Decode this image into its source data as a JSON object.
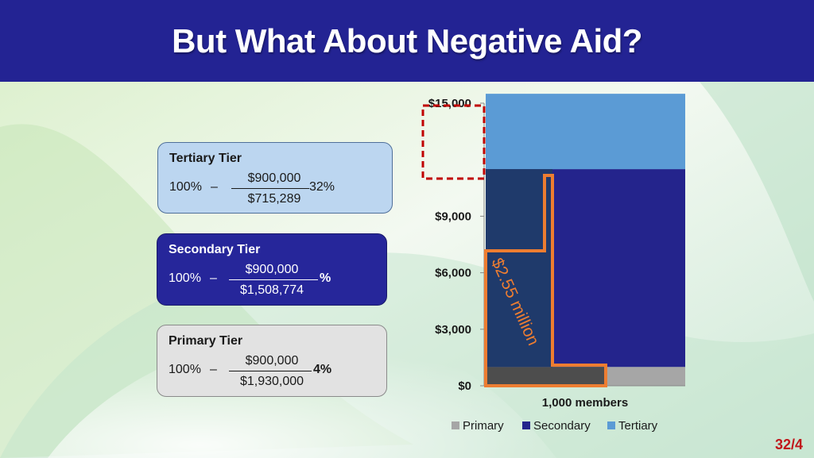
{
  "header": {
    "title": "But What About Negative Aid?"
  },
  "tiers": [
    {
      "name": "Tertiary Tier",
      "pct": "100%",
      "dash": "–",
      "numerator": "$900,000",
      "denominator": "$715,289",
      "result": "32%"
    },
    {
      "name": "Secondary Tier",
      "pct": "100%",
      "dash": "–",
      "numerator": "$900,000",
      "denominator": "$1,508,774",
      "result": "%"
    },
    {
      "name": "Primary Tier",
      "pct": "100%",
      "dash": "–",
      "numerator": "$900,000",
      "denominator": "$1,930,000",
      "result": "4%"
    }
  ],
  "chart_data": {
    "type": "bar",
    "stacked": true,
    "categories": [
      "1,000 members"
    ],
    "series": [
      {
        "name": "Primary",
        "values": [
          1000
        ],
        "color": "#a6a6a6"
      },
      {
        "name": "Secondary",
        "values": [
          10500
        ],
        "color": "#24248c"
      },
      {
        "name": "Tertiary",
        "values": [
          4000
        ],
        "color": "#5b9bd5"
      }
    ],
    "ylim": [
      0,
      15000
    ],
    "yticks": [
      "$0",
      "$3,000",
      "$6,000",
      "$9,000",
      "$15,000"
    ],
    "ytick_values": [
      0,
      3000,
      6000,
      9000,
      15000
    ],
    "xlabel": "1,000 members",
    "legend_position": "bottom",
    "annotation": {
      "text": "$2.55 million",
      "color": "#ed7d31"
    },
    "highlight_box_color": "#c00000"
  },
  "footer": {
    "page": "32/4"
  }
}
